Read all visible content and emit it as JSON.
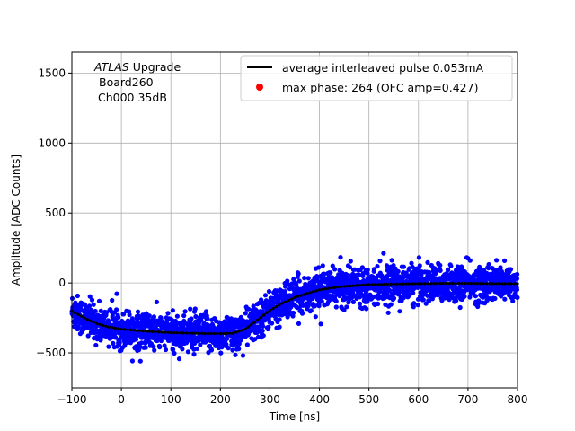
{
  "chart_data": {
    "type": "scatter",
    "xlabel": "Time [ns]",
    "ylabel": "Amplitude [ADC Counts]",
    "xlim": [
      -100,
      800
    ],
    "ylim": [
      -750,
      1650
    ],
    "x_ticks": [
      -100,
      0,
      100,
      200,
      300,
      400,
      500,
      600,
      700,
      800
    ],
    "y_ticks": [
      -500,
      0,
      500,
      1000,
      1500
    ],
    "grid": true,
    "legend_position": "top-right",
    "annotation": {
      "italic_part": "ATLAS",
      "rest": " Upgrade",
      "line2": "Board260",
      "line3": "Ch000 35dB"
    },
    "series": [
      {
        "name": "average interleaved pulse 0.053mA",
        "kind": "line",
        "color": "#000000",
        "x": [
          -100,
          -75,
          -50,
          -25,
          0,
          25,
          50,
          75,
          100,
          125,
          150,
          175,
          200,
          225,
          250,
          275,
          300,
          325,
          350,
          375,
          400,
          425,
          450,
          475,
          500,
          550,
          600,
          650,
          700,
          750,
          800
        ],
        "y": [
          -200,
          -250,
          -290,
          -315,
          -330,
          -338,
          -345,
          -350,
          -355,
          -358,
          -360,
          -362,
          -362,
          -360,
          -330,
          -265,
          -195,
          -145,
          -105,
          -75,
          -50,
          -35,
          -25,
          -18,
          -12,
          -8,
          -5,
          -3,
          -3,
          -5,
          -5
        ]
      },
      {
        "name": "max phase: 264 (OFC amp=0.427)",
        "kind": "scatter",
        "color": "#ff0000"
      },
      {
        "name": "samples",
        "kind": "scatter",
        "color": "#0000ff",
        "noise_sigma": 65,
        "x_step": 0.7
      }
    ]
  }
}
